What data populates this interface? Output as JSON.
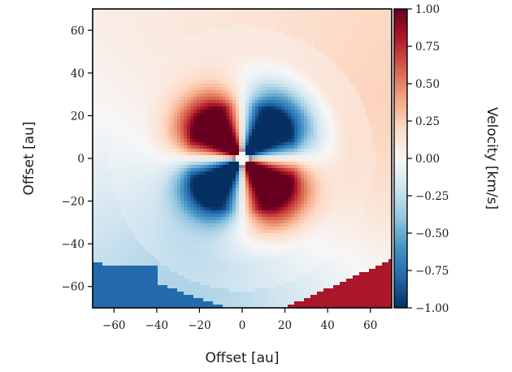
{
  "chart_data": {
    "type": "heatmap",
    "title": "",
    "xlabel": "Offset [au]",
    "ylabel": "Offset [au]",
    "xlim": [
      -70,
      70
    ],
    "ylim": [
      -70,
      70
    ],
    "xticks": [
      -60,
      -40,
      -20,
      0,
      20,
      40,
      60
    ],
    "yticks": [
      -60,
      -40,
      -20,
      0,
      20,
      40,
      60
    ],
    "xtick_labels": [
      "−60",
      "−40",
      "−20",
      "0",
      "20",
      "40",
      "60"
    ],
    "ytick_labels": [
      "60",
      "40",
      "20",
      "0",
      "−20",
      "−40",
      "−60"
    ],
    "ytick_values": [
      60,
      40,
      20,
      0,
      -20,
      -40,
      -60
    ],
    "colorbar": {
      "label": "Velocity [km/s]",
      "range": [
        -1.0,
        1.0
      ],
      "ticks": [
        1.0,
        0.75,
        0.5,
        0.25,
        0.0,
        -0.25,
        -0.5,
        -0.75,
        -1.0
      ],
      "tick_labels": [
        "1.00",
        "0.75",
        "0.50",
        "0.25",
        "0.00",
        "−0.25",
        "−0.50",
        "−0.75",
        "−1.00"
      ],
      "colormap": "RdBu_r",
      "color_high": "#67001f",
      "color_mid": "#f7f7f7",
      "color_low": "#053061"
    },
    "pattern": "quadrupole velocity field: positive lobes in upper-left and lower-right, negative lobes in upper-right and lower-left; strongly negative outer region lower-left corner, strongly positive lower-right corner"
  }
}
